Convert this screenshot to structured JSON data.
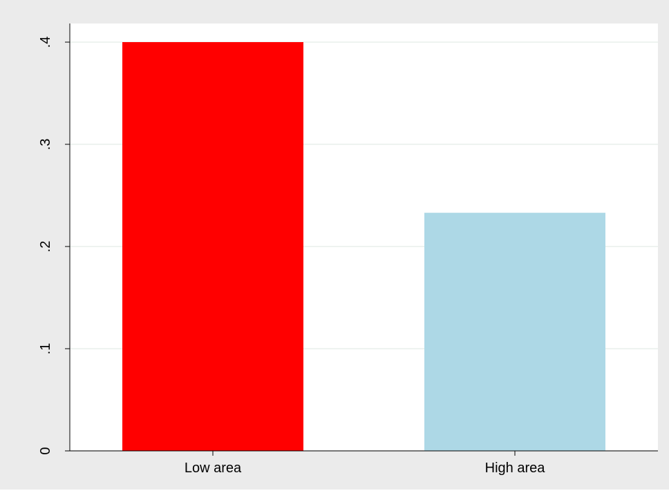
{
  "chart_data": {
    "type": "bar",
    "categories": [
      "Low area",
      "High area"
    ],
    "series": [
      {
        "values": [
          0.4,
          0.233
        ]
      }
    ],
    "ylim": [
      0,
      0.4
    ],
    "yticks": [
      0,
      0.1,
      0.2,
      0.3,
      0.4
    ],
    "ytick_labels": [
      "0",
      ".1",
      ".2",
      ".3",
      ".4"
    ],
    "grid": true,
    "legend": "none"
  },
  "colors": {
    "outer_background": "#ebebeb",
    "plot_background": "#ffffff",
    "gridline": "#e4ece8",
    "axis": "#000000",
    "bars": [
      "#ff0000",
      "#add8e6"
    ]
  }
}
